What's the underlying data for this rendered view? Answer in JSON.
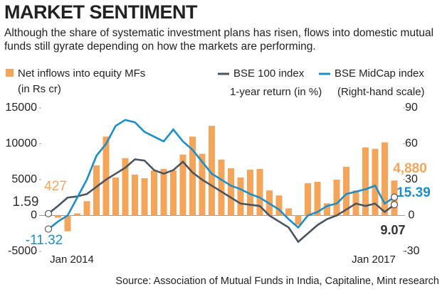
{
  "title": "MARKET SENTIMENT",
  "subtitle": "Although the share of systematic investment plans has risen, flows into domestic mutual funds still gyrate depending on how the markets are performing.",
  "source": "Source: Association of Mutual Funds in India, Capitaline, Mint research",
  "chart_data": {
    "type": "bar-line",
    "categories": [
      null,
      null,
      "Jan 2014",
      null,
      null,
      null,
      null,
      null,
      null,
      null,
      null,
      null,
      null,
      null,
      null,
      null,
      null,
      null,
      null,
      null,
      null,
      null,
      null,
      null,
      null,
      null,
      null,
      null,
      null,
      null,
      null,
      null,
      null,
      null,
      "Jan 2017",
      null,
      null
    ],
    "series": [
      {
        "name": "Net inflows into equity MFs",
        "unit_note": "(in Rs cr)",
        "type": "bar",
        "color": "#f5a55a",
        "values": [
          427,
          -300,
          -2200,
          300,
          2000,
          7000,
          11000,
          5300,
          8000,
          5700,
          5200,
          6300,
          6500,
          6300,
          8500,
          11000,
          8600,
          12500,
          7800,
          6600,
          5300,
          6400,
          6500,
          3500,
          2800,
          1000,
          -1300,
          4500,
          4700,
          1700,
          5000,
          6800,
          3500,
          9500,
          9300,
          10200,
          4880
        ],
        "value_labels": [
          "427",
          null,
          null,
          null,
          null,
          null,
          null,
          null,
          null,
          null,
          null,
          null,
          null,
          null,
          null,
          null,
          null,
          null,
          null,
          null,
          null,
          null,
          null,
          null,
          null,
          null,
          null,
          null,
          null,
          null,
          null,
          null,
          null,
          null,
          null,
          null,
          "4,880"
        ]
      },
      {
        "name": "BSE 100 index",
        "type": "line",
        "axis": "y2",
        "color": "#4a5560",
        "values": [
          1.59,
          8,
          15,
          16,
          18,
          24,
          30,
          35,
          40,
          47,
          46,
          38,
          35,
          38,
          45,
          36,
          30,
          25,
          20,
          15,
          10,
          9,
          8,
          0,
          -5,
          -10,
          -22,
          -15,
          -8,
          -3,
          0,
          5,
          10,
          8,
          10,
          3,
          9.07
        ],
        "value_labels": [
          "1.59",
          null,
          null,
          null,
          null,
          null,
          null,
          null,
          null,
          null,
          null,
          null,
          null,
          null,
          null,
          null,
          null,
          null,
          null,
          null,
          null,
          null,
          null,
          null,
          null,
          null,
          null,
          null,
          null,
          null,
          null,
          null,
          null,
          null,
          null,
          null,
          "9.07"
        ]
      },
      {
        "name": "BSE MidCap index",
        "type": "line",
        "axis": "y2",
        "color": "#1a8fc9",
        "values": [
          -11.32,
          -5,
          0,
          15,
          30,
          50,
          60,
          75,
          80,
          78,
          70,
          66,
          62,
          72,
          62,
          55,
          45,
          35,
          30,
          25,
          22,
          18,
          15,
          10,
          5,
          -3,
          -10,
          0,
          3,
          8,
          10,
          18,
          20,
          22,
          25,
          10,
          15.39
        ],
        "value_labels": [
          "-11.32",
          null,
          null,
          null,
          null,
          null,
          null,
          null,
          null,
          null,
          null,
          null,
          null,
          null,
          null,
          null,
          null,
          null,
          null,
          null,
          null,
          null,
          null,
          null,
          null,
          null,
          null,
          null,
          null,
          null,
          null,
          null,
          null,
          null,
          null,
          null,
          "15.39"
        ]
      }
    ],
    "y2_label": "1-year return (in %)",
    "y2_note": "(Right-hand scale)",
    "ylim": [
      -5000,
      15000
    ],
    "yticks": [
      -5000,
      0,
      5000,
      10000,
      15000
    ],
    "y2lim": [
      -30,
      90
    ],
    "y2ticks": [
      -30,
      0,
      30,
      60,
      90
    ]
  }
}
